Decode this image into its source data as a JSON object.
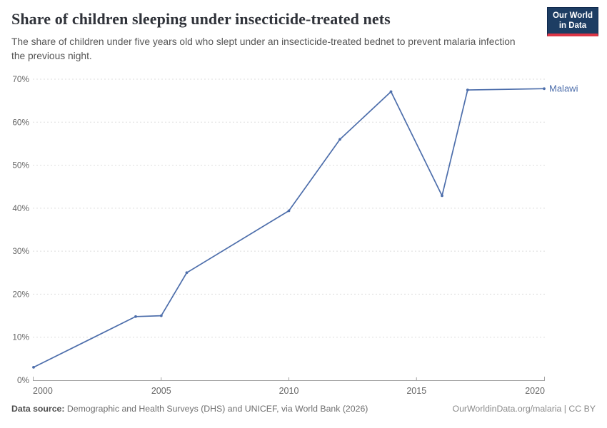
{
  "header": {
    "title": "Share of children sleeping under insecticide-treated nets",
    "subtitle": "The share of children under five years old who slept under an insecticide-treated bednet to prevent malaria infection the previous night.",
    "logo": {
      "line1": "Our World",
      "line2": "in Data"
    }
  },
  "chart_data": {
    "type": "line",
    "title": "Share of children sleeping under insecticide-treated nets",
    "series": [
      {
        "name": "Malawi",
        "color": "#4d6eab",
        "x": [
          2000,
          2004,
          2005,
          2006,
          2010,
          2012,
          2014,
          2016,
          2017,
          2020
        ],
        "y": [
          3,
          14.8,
          15,
          25,
          39.4,
          56,
          67.1,
          42.9,
          67.5,
          67.8
        ]
      }
    ],
    "xlabel": "",
    "ylabel": "",
    "xlim": [
      2000,
      2020
    ],
    "ylim": [
      0,
      70
    ],
    "x_ticks": [
      2000,
      2005,
      2010,
      2015,
      2020
    ],
    "y_ticks": [
      0,
      10,
      20,
      30,
      40,
      50,
      60,
      70
    ],
    "y_tick_suffix": "%",
    "grid": "horizontal-dashed",
    "legend_position": "end-of-line-label",
    "end_label": "Malawi"
  },
  "footer": {
    "datasource_label": "Data source:",
    "datasource_text": " Demographic and Health Surveys (DHS) and UNICEF, via World Bank (2026)",
    "credit": "OurWorldinData.org/malaria | CC BY"
  },
  "colors": {
    "line": "#4d6eab",
    "grid": "#dddddd",
    "axis": "#a3a3a3",
    "tick_text": "#666666",
    "logo_bg": "#1d3d63",
    "logo_stripe": "#dc3545"
  }
}
